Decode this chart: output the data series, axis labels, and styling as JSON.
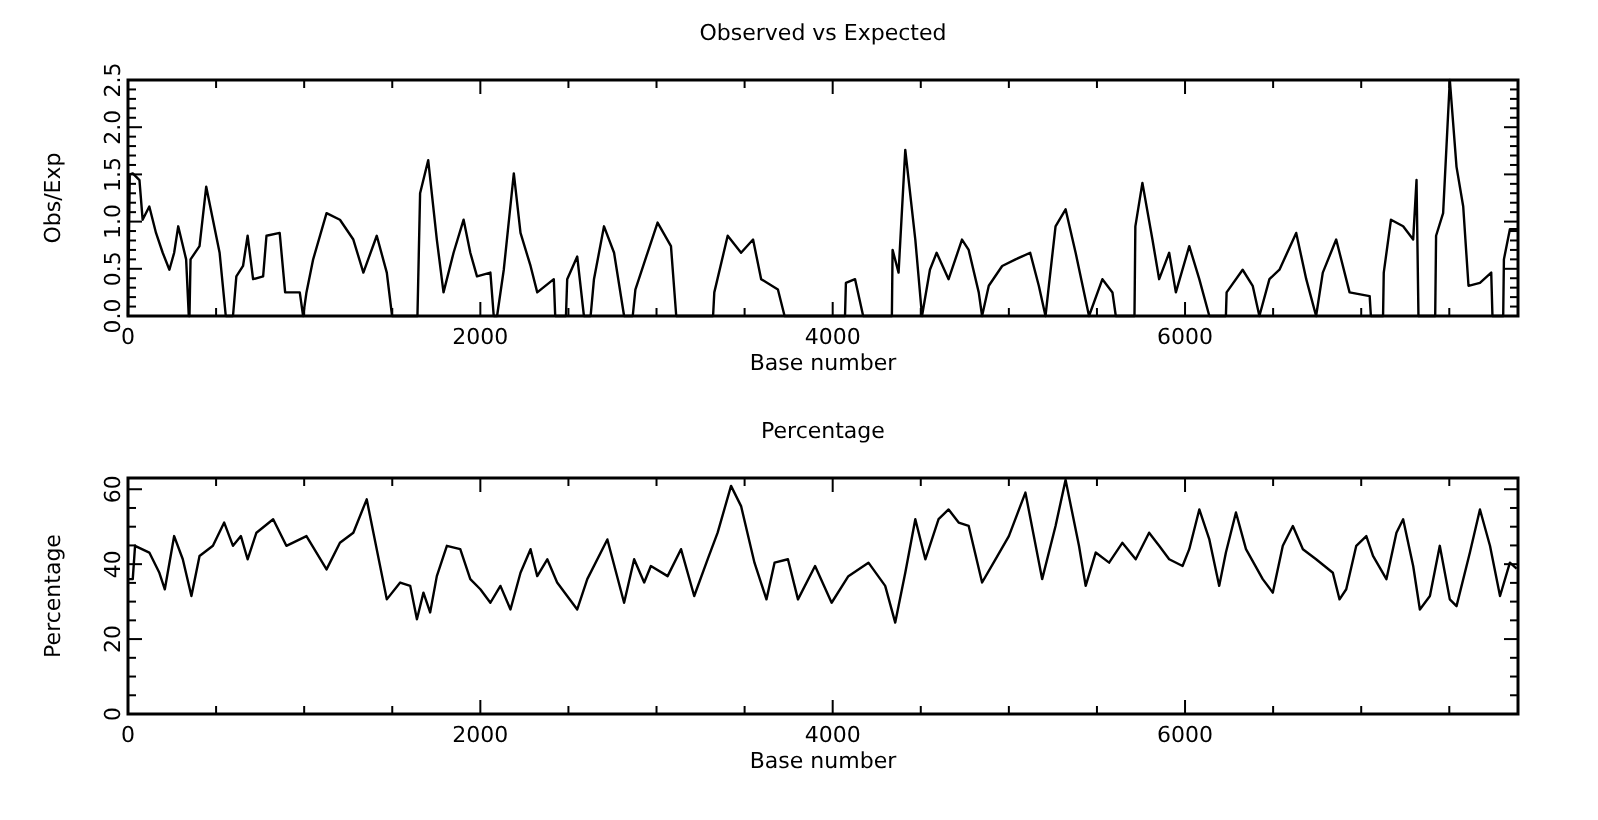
{
  "chart_data": [
    {
      "type": "line",
      "title": "Observed vs Expected",
      "xlabel": "Base number",
      "ylabel": "Obs/Exp",
      "xlim": [
        0,
        7890
      ],
      "ylim": [
        0,
        2.5
      ],
      "xticks": [
        0,
        {
          "value": 500,
          "label": null
        },
        {
          "value": 1000,
          "label": null
        },
        {
          "value": 1500,
          "label": null
        },
        2000,
        {
          "value": 2500,
          "label": null
        },
        {
          "value": 3000,
          "label": null
        },
        {
          "value": 3500,
          "label": null
        },
        4000,
        {
          "value": 4500,
          "label": null
        },
        {
          "value": 5000,
          "label": null
        },
        {
          "value": 5500,
          "label": null
        },
        6000,
        {
          "value": 6500,
          "label": null
        },
        {
          "value": 7000,
          "label": null
        },
        {
          "value": 7500,
          "label": null
        }
      ],
      "yticks": [
        {
          "value": 0,
          "label": "0.0"
        },
        {
          "value": 0.1,
          "label": null
        },
        {
          "value": 0.2,
          "label": null
        },
        {
          "value": 0.3,
          "label": null
        },
        {
          "value": 0.4,
          "label": null
        },
        {
          "value": 0.5,
          "label": "0.5"
        },
        {
          "value": 0.6,
          "label": null
        },
        {
          "value": 0.7,
          "label": null
        },
        {
          "value": 0.8,
          "label": null
        },
        {
          "value": 0.9,
          "label": null
        },
        {
          "value": 1,
          "label": "1.0"
        },
        {
          "value": 1.1,
          "label": null
        },
        {
          "value": 1.2,
          "label": null
        },
        {
          "value": 1.3,
          "label": null
        },
        {
          "value": 1.4,
          "label": null
        },
        {
          "value": 1.5,
          "label": "1.5"
        },
        {
          "value": 1.6,
          "label": null
        },
        {
          "value": 1.7,
          "label": null
        },
        {
          "value": 1.8,
          "label": null
        },
        {
          "value": 1.9,
          "label": null
        },
        {
          "value": 2,
          "label": "2.0"
        },
        {
          "value": 2.1,
          "label": null
        },
        {
          "value": 2.2,
          "label": null
        },
        {
          "value": 2.3,
          "label": null
        },
        {
          "value": 2.4,
          "label": null
        },
        {
          "value": 2.5,
          "label": "2.5"
        }
      ],
      "series": [
        {
          "color": "#000000",
          "x": [
            0,
            10,
            27,
            65,
            83,
            121,
            159,
            197,
            235,
            262,
            285,
            330,
            345,
            349,
            355,
            406,
            444,
            482,
            520,
            555,
            596,
            615,
            653,
            679,
            710,
            767,
            786,
            861,
            892,
            975,
            994,
            1013,
            1051,
            1127,
            1203,
            1279,
            1336,
            1412,
            1469,
            1499,
            1643,
            1658,
            1704,
            1753,
            1791,
            1848,
            1905,
            1943,
            1981,
            2057,
            2076,
            2095,
            2133,
            2190,
            2228,
            2285,
            2323,
            2417,
            2425,
            2486,
            2493,
            2550,
            2588,
            2626,
            2645,
            2702,
            2759,
            2816,
            2865,
            2880,
            2949,
            3006,
            3082,
            3112,
            3321,
            3328,
            3404,
            3480,
            3548,
            3594,
            3689,
            3727,
            4070,
            4075,
            4127,
            4173,
            4336,
            4340,
            4374,
            4412,
            4469,
            4507,
            4552,
            4590,
            4658,
            4734,
            4772,
            4829,
            4848,
            4886,
            4962,
            5038,
            5121,
            5170,
            5208,
            5227,
            5265,
            5322,
            5379,
            5455,
            5531,
            5588,
            5607,
            5713,
            5718,
            5758,
            5815,
            5853,
            5910,
            5948,
            6024,
            6081,
            6138,
            6232,
            6236,
            6327,
            6384,
            6422,
            6479,
            6536,
            6631,
            6688,
            6744,
            6782,
            6858,
            6934,
            7048,
            7055,
            7124,
            7128,
            7169,
            7238,
            7295,
            7314,
            7325,
            7420,
            7425,
            7465,
            7503,
            7541,
            7579,
            7609,
            7674,
            7738,
            7745,
            7806,
            7810,
            7844,
            7890
          ],
          "values": [
            0,
            1.5,
            1.51,
            1.44,
            1.02,
            1.16,
            0.88,
            0.67,
            0.49,
            0.67,
            0.95,
            0.6,
            0,
            0,
            0.6,
            0.74,
            1.37,
            1.02,
            0.67,
            0,
            0,
            0.42,
            0.53,
            0.85,
            0.39,
            0.42,
            0.85,
            0.88,
            0.25,
            0.25,
            0,
            0.25,
            0.6,
            1.09,
            1.02,
            0.81,
            0.46,
            0.85,
            0.46,
            0,
            0,
            1.3,
            1.65,
            0.81,
            0.25,
            0.67,
            1.02,
            0.67,
            0.42,
            0.46,
            0,
            0,
            0.49,
            1.51,
            0.88,
            0.53,
            0.25,
            0.39,
            0,
            0,
            0.39,
            0.63,
            0,
            0,
            0.39,
            0.95,
            0.67,
            0,
            0,
            0.28,
            0.67,
            0.99,
            0.74,
            0,
            0,
            0.25,
            0.85,
            0.67,
            0.81,
            0.39,
            0.28,
            0,
            0,
            0.35,
            0.39,
            0,
            0,
            0.7,
            0.46,
            1.76,
            0.81,
            0,
            0.49,
            0.67,
            0.39,
            0.81,
            0.7,
            0.25,
            0,
            0.32,
            0.53,
            0.6,
            0.67,
            0.32,
            0,
            0.32,
            0.95,
            1.13,
            0.67,
            0,
            0.39,
            0.25,
            0,
            0,
            0.95,
            1.41,
            0.81,
            0.39,
            0.67,
            0.25,
            0.74,
            0.39,
            0,
            0,
            0.25,
            0.49,
            0.32,
            0,
            0.39,
            0.49,
            0.88,
            0.39,
            0,
            0.46,
            0.81,
            0.25,
            0.21,
            0,
            0,
            0.46,
            1.02,
            0.95,
            0.81,
            1.44,
            0,
            0,
            0.85,
            1.09,
            2.5,
            1.58,
            1.16,
            0.32,
            0.35,
            0.46,
            0,
            0,
            0.6,
            0.92,
            0.92
          ]
        }
      ]
    },
    {
      "type": "line",
      "title": "Percentage",
      "xlabel": "Base number",
      "ylabel": "Percentage",
      "xlim": [
        0,
        7890
      ],
      "ylim": [
        0,
        63
      ],
      "xticks": [
        0,
        {
          "value": 500,
          "label": null
        },
        {
          "value": 1000,
          "label": null
        },
        {
          "value": 1500,
          "label": null
        },
        2000,
        {
          "value": 2500,
          "label": null
        },
        {
          "value": 3000,
          "label": null
        },
        {
          "value": 3500,
          "label": null
        },
        4000,
        {
          "value": 4500,
          "label": null
        },
        {
          "value": 5000,
          "label": null
        },
        {
          "value": 5500,
          "label": null
        },
        6000,
        {
          "value": 6500,
          "label": null
        },
        {
          "value": 7000,
          "label": null
        },
        {
          "value": 7500,
          "label": null
        }
      ],
      "yticks": [
        0,
        {
          "value": 5,
          "label": null
        },
        {
          "value": 10,
          "label": null
        },
        {
          "value": 15,
          "label": null
        },
        20,
        {
          "value": 25,
          "label": null
        },
        {
          "value": 30,
          "label": null
        },
        {
          "value": 35,
          "label": null
        },
        40,
        {
          "value": 45,
          "label": null
        },
        {
          "value": 50,
          "label": null
        },
        {
          "value": 55,
          "label": null
        },
        60
      ],
      "series": [
        {
          "color": "#000000",
          "x": [
            0,
            27,
            40,
            121,
            178,
            209,
            262,
            311,
            360,
            406,
            482,
            546,
            596,
            641,
            679,
            729,
            824,
            899,
            1013,
            1127,
            1203,
            1279,
            1355,
            1393,
            1469,
            1545,
            1602,
            1640,
            1677,
            1715,
            1753,
            1810,
            1886,
            1943,
            2000,
            2057,
            2114,
            2171,
            2228,
            2285,
            2323,
            2380,
            2436,
            2493,
            2550,
            2607,
            2721,
            2816,
            2873,
            2930,
            2968,
            3063,
            3139,
            3214,
            3290,
            3347,
            3423,
            3480,
            3556,
            3624,
            3670,
            3746,
            3803,
            3900,
            3994,
            4089,
            4203,
            4298,
            4355,
            4412,
            4469,
            4526,
            4601,
            4658,
            4715,
            4772,
            4848,
            4924,
            5000,
            5094,
            5189,
            5265,
            5322,
            5398,
            5436,
            5493,
            5569,
            5644,
            5720,
            5796,
            5853,
            5910,
            5986,
            6024,
            6081,
            6138,
            6194,
            6232,
            6289,
            6346,
            6441,
            6498,
            6555,
            6612,
            6669,
            6744,
            6839,
            6877,
            6915,
            6972,
            7029,
            7067,
            7143,
            7200,
            7238,
            7295,
            7333,
            7390,
            7446,
            7503,
            7541,
            7617,
            7674,
            7731,
            7788,
            7844,
            7882
          ],
          "values": [
            36,
            36,
            44.9,
            43.1,
            37.7,
            33.3,
            47.5,
            41.3,
            31.5,
            42.2,
            44.9,
            51.1,
            44.9,
            47.5,
            41.3,
            48.4,
            52,
            44.9,
            47.5,
            38.6,
            45.7,
            48.4,
            57.3,
            48.4,
            30.6,
            35.1,
            34.2,
            25.3,
            32.4,
            27.1,
            36.8,
            44.9,
            44,
            36,
            33.3,
            29.7,
            34.2,
            27.9,
            37.7,
            44,
            36.8,
            41.3,
            35.1,
            31.5,
            27.9,
            36,
            46.6,
            29.7,
            41.3,
            35.1,
            39.5,
            36.8,
            44,
            31.5,
            41.3,
            48.4,
            60.9,
            55.5,
            40.4,
            30.6,
            40.4,
            41.3,
            30.6,
            39.5,
            29.7,
            36.8,
            40.4,
            34.2,
            24.4,
            37.7,
            52,
            41.3,
            52,
            54.6,
            51.1,
            50.2,
            35.1,
            41.3,
            47.5,
            59.1,
            36,
            50.2,
            62.5,
            44.9,
            34.2,
            43.1,
            40.4,
            45.7,
            41.3,
            48.4,
            44.9,
            41.3,
            39.5,
            44,
            54.6,
            46.6,
            34.2,
            43.1,
            53.8,
            44,
            36,
            32.4,
            44.9,
            50.2,
            44,
            41.3,
            37.7,
            30.6,
            33.3,
            44.9,
            47.5,
            42.2,
            36,
            48.4,
            52,
            39.5,
            27.9,
            31.5,
            44.9,
            30.6,
            28.8,
            43.1,
            54.6,
            44.9,
            31.5,
            40.4,
            38.8
          ]
        }
      ]
    }
  ]
}
